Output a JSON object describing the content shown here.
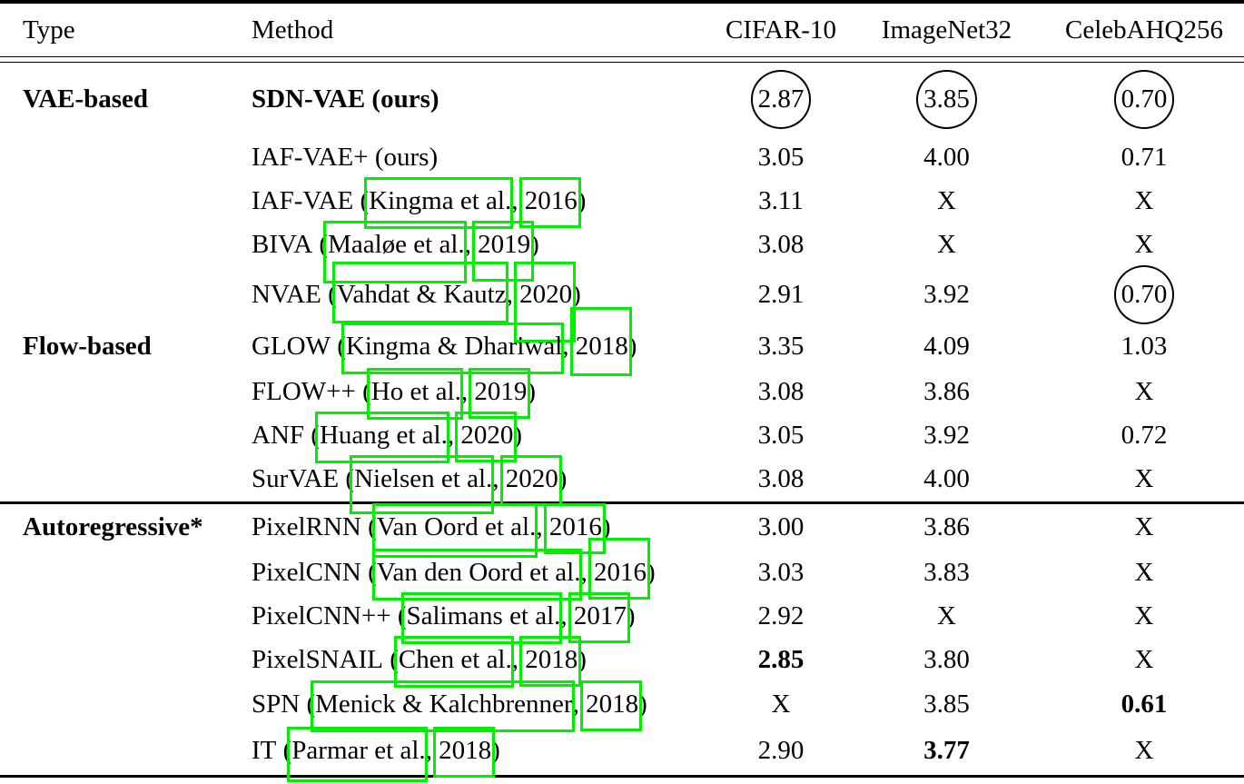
{
  "link_color": "#00ef00",
  "table": {
    "columns": {
      "type": "Type",
      "method": "Method",
      "cifar10": "CIFAR-10",
      "imagenet32": "ImageNet32",
      "celebahq256": "CelebAHQ256"
    },
    "rows": [
      {
        "type": "VAE-based",
        "method": "SDN-VAE (ours)",
        "cite_open": "",
        "cite_author": "",
        "cite_sep": "",
        "cite_year": "",
        "cite_close": "",
        "values": [
          "2.87",
          "3.85",
          "0.70"
        ]
      },
      {
        "type": "",
        "method": "IAF-VAE+ (ours)",
        "cite_open": "",
        "cite_author": "",
        "cite_sep": "",
        "cite_year": "",
        "cite_close": "",
        "values": [
          "3.05",
          "4.00",
          "0.71"
        ]
      },
      {
        "type": "",
        "method": "IAF-VAE",
        "cite_open": " (",
        "cite_author": "Kingma et al.",
        "cite_sep": ", ",
        "cite_year": "2016",
        "cite_close": ")",
        "values": [
          "3.11",
          "X",
          "X"
        ]
      },
      {
        "type": "",
        "method": "BIVA",
        "cite_open": " (",
        "cite_author": "Maaløe et al.",
        "cite_sep": ", ",
        "cite_year": "2019",
        "cite_close": ")",
        "values": [
          "3.08",
          "X",
          "X"
        ]
      },
      {
        "type": "",
        "method": "NVAE",
        "cite_open": " (",
        "cite_author": "Vahdat & Kautz",
        "cite_sep": ", ",
        "cite_year": "2020",
        "cite_close": ")",
        "values": [
          "2.91",
          "3.92",
          "0.70"
        ]
      },
      {
        "type": "Flow-based",
        "method": "GLOW",
        "cite_open": " (",
        "cite_author": "Kingma & Dhariwal",
        "cite_sep": ", ",
        "cite_year": "2018",
        "cite_close": ")",
        "values": [
          "3.35",
          "4.09",
          "1.03"
        ]
      },
      {
        "type": "",
        "method": "FLOW++",
        "cite_open": " (",
        "cite_author": "Ho et al.",
        "cite_sep": ", ",
        "cite_year": "2019",
        "cite_close": ")",
        "values": [
          "3.08",
          "3.86",
          "X"
        ]
      },
      {
        "type": "",
        "method": "ANF",
        "cite_open": " (",
        "cite_author": "Huang et al.",
        "cite_sep": ", ",
        "cite_year": "2020",
        "cite_close": ")",
        "values": [
          "3.05",
          "3.92",
          "0.72"
        ]
      },
      {
        "type": "",
        "method": "SurVAE",
        "cite_open": " (",
        "cite_author": "Nielsen et al.",
        "cite_sep": ", ",
        "cite_year": "2020",
        "cite_close": ")",
        "values": [
          "3.08",
          "4.00",
          "X"
        ]
      },
      {
        "type": "Autoregressive*",
        "method": "PixelRNN",
        "cite_open": " (",
        "cite_author": "Van Oord et al.",
        "cite_sep": ", ",
        "cite_year": "2016",
        "cite_close": ")",
        "values": [
          "3.00",
          "3.86",
          "X"
        ]
      },
      {
        "type": "",
        "method": "PixelCNN",
        "cite_open": " (",
        "cite_author": "Van den Oord et al.",
        "cite_sep": ", ",
        "cite_year": "2016",
        "cite_close": ")",
        "values": [
          "3.03",
          "3.83",
          "X"
        ]
      },
      {
        "type": "",
        "method": "PixelCNN++",
        "cite_open": " (",
        "cite_author": "Salimans et al.",
        "cite_sep": ", ",
        "cite_year": "2017",
        "cite_close": ")",
        "values": [
          "2.92",
          "X",
          "X"
        ]
      },
      {
        "type": "",
        "method": "PixelSNAIL",
        "cite_open": " (",
        "cite_author": "Chen et al.",
        "cite_sep": ", ",
        "cite_year": "2018",
        "cite_close": ")",
        "values": [
          "2.85",
          "3.80",
          "X"
        ]
      },
      {
        "type": "",
        "method": "SPN",
        "cite_open": " (",
        "cite_author": "Menick & Kalchbrenner",
        "cite_sep": ", ",
        "cite_year": "2018",
        "cite_close": ")",
        "values": [
          "X",
          "3.85",
          "0.61"
        ]
      },
      {
        "type": "",
        "method": "IT",
        "cite_open": " (",
        "cite_author": "Parmar et al.",
        "cite_sep": ", ",
        "cite_year": "2018",
        "cite_close": ")",
        "values": [
          "2.90",
          "3.77",
          "X"
        ]
      }
    ]
  }
}
